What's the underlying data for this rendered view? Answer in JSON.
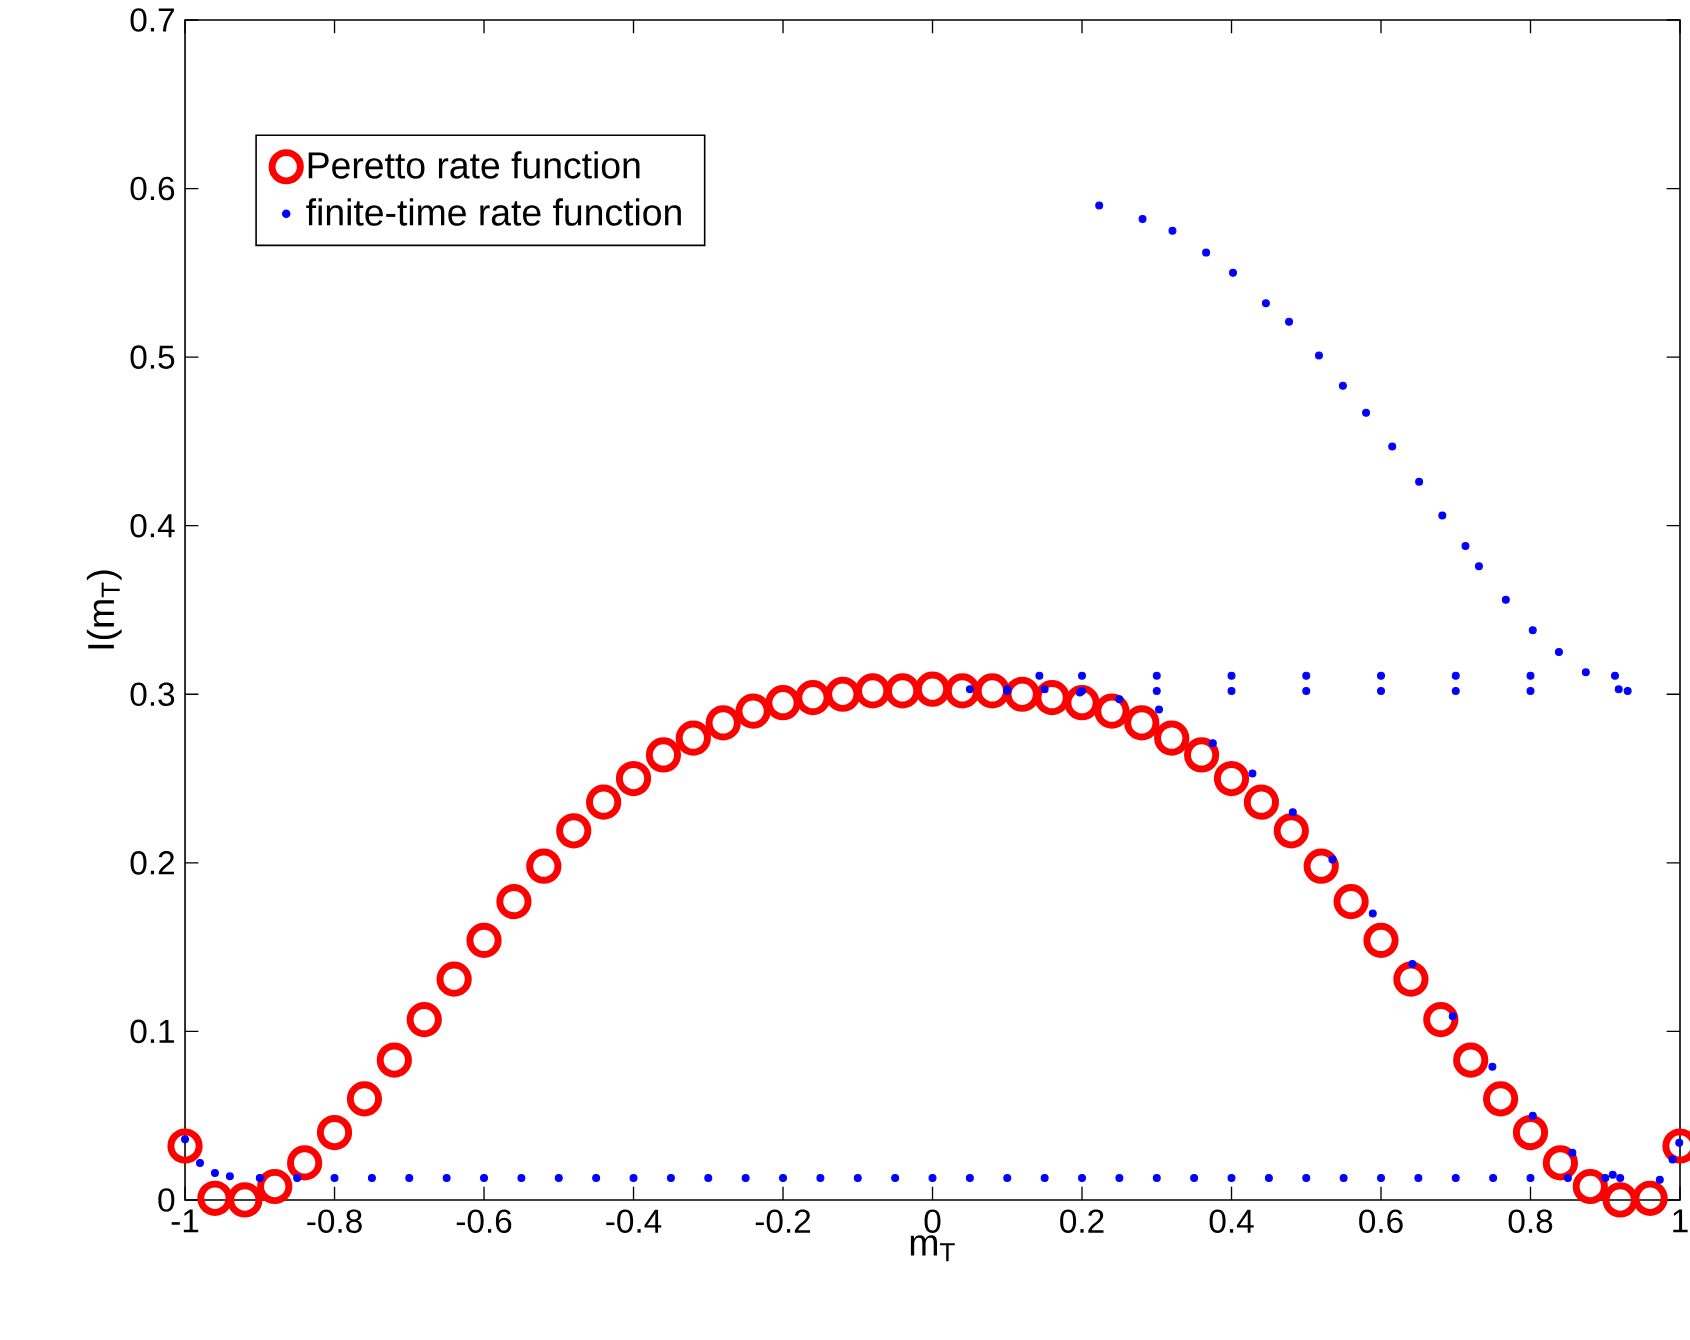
{
  "chart_data": {
    "type": "scatter",
    "xlabel": "m$_{T}$",
    "ylabel": "I(m$_{T}$)",
    "xlim": [
      -1,
      1
    ],
    "ylim": [
      0,
      0.7
    ],
    "xticks": [
      -1,
      -0.8,
      -0.6,
      -0.4,
      -0.2,
      0,
      0.2,
      0.4,
      0.6,
      0.8,
      1
    ],
    "yticks": [
      0,
      0.1,
      0.2,
      0.3,
      0.4,
      0.5,
      0.6,
      0.7
    ],
    "grid": false,
    "legend": "top left",
    "series": [
      {
        "name": "Peretto rate function",
        "color": "#ff0000",
        "marker": "circle",
        "x": [
          -1,
          -0.96,
          -0.92,
          -0.88,
          -0.84,
          -0.8,
          -0.76,
          -0.72,
          -0.68,
          -0.64,
          -0.6,
          -0.56,
          -0.52,
          -0.48,
          -0.44,
          -0.4,
          -0.36,
          -0.32,
          -0.28,
          -0.24,
          -0.2,
          -0.16,
          -0.12,
          -0.08,
          -0.04,
          0,
          0.04,
          0.08,
          0.12,
          0.16,
          0.2,
          0.24,
          0.28,
          0.32,
          0.36,
          0.4,
          0.44,
          0.48,
          0.52,
          0.56,
          0.6,
          0.64,
          0.68,
          0.72,
          0.76,
          0.8,
          0.84,
          0.88,
          0.92,
          0.96,
          1
        ],
        "values": [
          0.032,
          0.001,
          0,
          0.008,
          0.022,
          0.04,
          0.06,
          0.083,
          0.107,
          0.131,
          0.154,
          0.177,
          0.198,
          0.219,
          0.236,
          0.25,
          0.264,
          0.274,
          0.283,
          0.29,
          0.295,
          0.298,
          0.3,
          0.302,
          0.302,
          0.303,
          0.302,
          0.302,
          0.3,
          0.298,
          0.295,
          0.29,
          0.283,
          0.274,
          0.264,
          0.25,
          0.236,
          0.219,
          0.198,
          0.177,
          0.154,
          0.131,
          0.107,
          0.083,
          0.06,
          0.04,
          0.022,
          0.008,
          0,
          0.001,
          0.032
        ]
      },
      {
        "name": "finite-time rate function",
        "color": "#0000ff",
        "marker": "dot",
        "x": [
          -1,
          -0.98,
          -0.96,
          -0.94,
          -0.9,
          -0.85,
          -0.8,
          -0.75,
          -0.7,
          -0.65,
          -0.6,
          -0.55,
          -0.5,
          -0.45,
          -0.4,
          -0.35,
          -0.3,
          -0.25,
          -0.2,
          -0.15,
          -0.1,
          -0.05,
          0,
          0.05,
          0.1,
          0.15,
          0.2,
          0.25,
          0.3,
          0.35,
          0.4,
          0.45,
          0.5,
          0.55,
          0.6,
          0.65,
          0.7,
          0.75,
          0.8,
          0.85,
          0.9,
          0.92,
          0.973,
          0.99,
          0.999,
          0.05,
          0.1,
          0.15,
          0.197,
          0.25,
          0.303,
          0.375,
          0.428,
          0.482,
          0.535,
          0.589,
          0.642,
          0.696,
          0.749,
          0.803,
          0.856,
          0.91,
          0.143,
          0.2,
          0.3,
          0.4,
          0.5,
          0.6,
          0.7,
          0.8,
          0.913,
          0.1,
          0.2,
          0.3,
          0.4,
          0.5,
          0.6,
          0.7,
          0.8,
          0.93,
          0.223,
          0.281,
          0.321,
          0.366,
          0.402,
          0.446,
          0.477,
          0.517,
          0.549,
          0.58,
          0.615,
          0.651,
          0.682,
          0.713,
          0.731,
          0.767,
          0.803,
          0.838,
          0.874,
          0.918
        ],
        "values": [
          0.036,
          0.022,
          0.016,
          0.014,
          0.013,
          0.013,
          0.013,
          0.013,
          0.013,
          0.013,
          0.013,
          0.013,
          0.013,
          0.013,
          0.013,
          0.013,
          0.013,
          0.013,
          0.013,
          0.013,
          0.013,
          0.013,
          0.013,
          0.013,
          0.013,
          0.013,
          0.013,
          0.013,
          0.013,
          0.013,
          0.013,
          0.013,
          0.013,
          0.013,
          0.013,
          0.013,
          0.013,
          0.013,
          0.013,
          0.013,
          0.013,
          0.013,
          0.012,
          0.024,
          0.034,
          0.303,
          0.303,
          0.303,
          0.301,
          0.297,
          0.291,
          0.271,
          0.253,
          0.23,
          0.202,
          0.17,
          0.14,
          0.109,
          0.079,
          0.05,
          0.028,
          0.015,
          0.311,
          0.311,
          0.311,
          0.311,
          0.311,
          0.311,
          0.311,
          0.311,
          0.311,
          0.302,
          0.302,
          0.302,
          0.302,
          0.302,
          0.302,
          0.302,
          0.302,
          0.302,
          0.59,
          0.582,
          0.575,
          0.562,
          0.55,
          0.532,
          0.521,
          0.501,
          0.483,
          0.467,
          0.447,
          0.426,
          0.406,
          0.388,
          0.376,
          0.356,
          0.338,
          0.325,
          0.313,
          0.303
        ]
      }
    ]
  }
}
